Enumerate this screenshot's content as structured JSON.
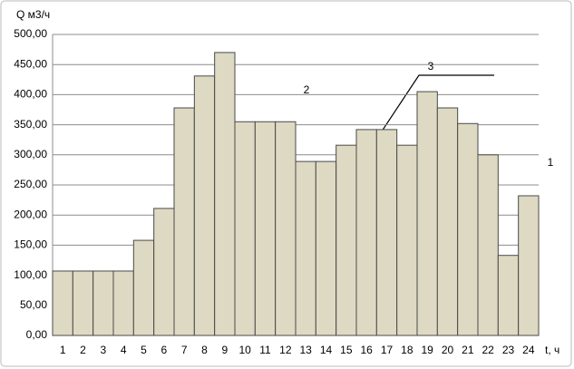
{
  "chart_data": {
    "type": "bar",
    "y_label": "Q м3/ч",
    "x_label": "t, ч",
    "categories": [
      "1",
      "2",
      "3",
      "4",
      "5",
      "6",
      "7",
      "8",
      "9",
      "10",
      "11",
      "12",
      "13",
      "14",
      "15",
      "16",
      "17",
      "18",
      "19",
      "20",
      "21",
      "22",
      "23",
      "24"
    ],
    "values": [
      107,
      107,
      107,
      107,
      158,
      211,
      378,
      431,
      470,
      355,
      355,
      355,
      289,
      289,
      316,
      342,
      342,
      316,
      405,
      378,
      352,
      300,
      133,
      232
    ],
    "color": "#ddd9c3",
    "ylim": [
      0,
      500
    ],
    "yticks": [
      {
        "value": 0,
        "label": "0,00"
      },
      {
        "value": 50,
        "label": "50,00"
      },
      {
        "value": 100,
        "label": "100,00"
      },
      {
        "value": 150,
        "label": "150,00"
      },
      {
        "value": 200,
        "label": "200,00"
      },
      {
        "value": 250,
        "label": "250,00"
      },
      {
        "value": 300,
        "label": "300,00"
      },
      {
        "value": 350,
        "label": "350,00"
      },
      {
        "value": 400,
        "label": "400,00"
      },
      {
        "value": 450,
        "label": "450,00"
      },
      {
        "value": 500,
        "label": "500,00"
      }
    ],
    "grid": true,
    "annotations": [
      "1",
      "2",
      "3"
    ]
  }
}
